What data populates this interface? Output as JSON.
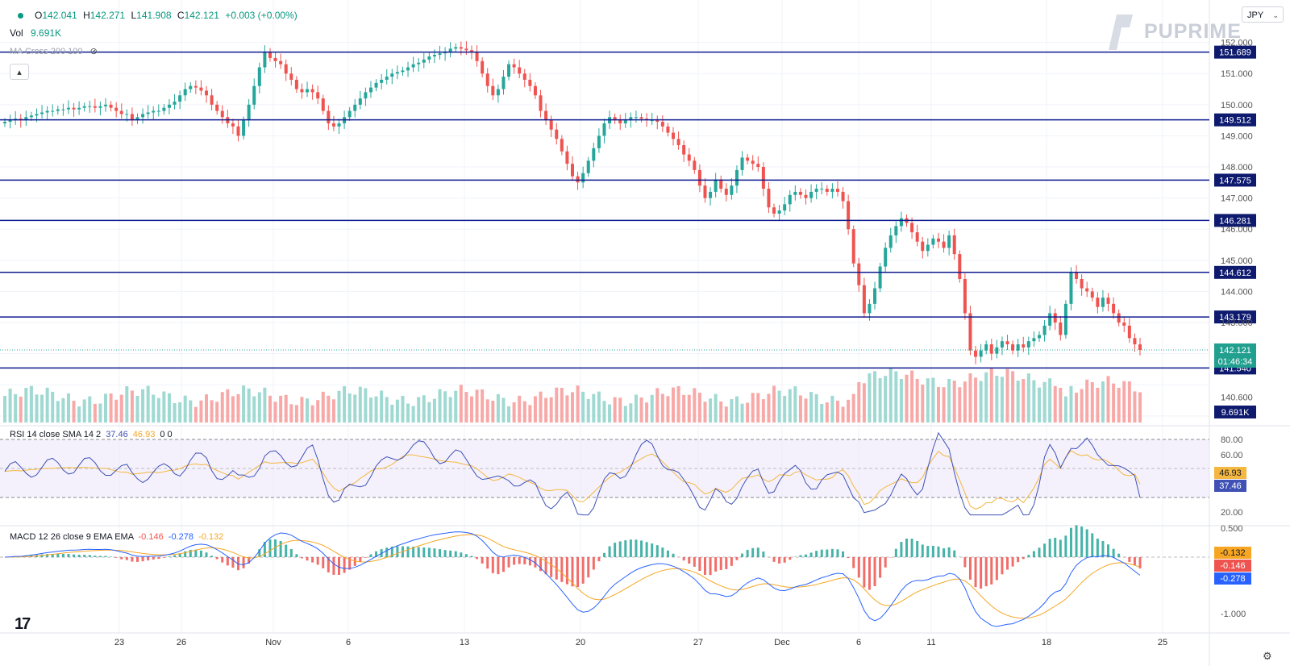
{
  "currency_selector": {
    "label": "JPY"
  },
  "brand": {
    "name": "PUPRIME"
  },
  "legend": {
    "open_label": "O",
    "open": "142.041",
    "high_label": "H",
    "high": "142.271",
    "low_label": "L",
    "low": "141.908",
    "close_label": "C",
    "close": "142.121",
    "change": "+0.003 (+0.00%)",
    "vol_label": "Vol",
    "vol_value": "9.691K",
    "ma_label": "MA Cross 200 100"
  },
  "rsi_legend": {
    "label": "RSI 14 close SMA 14 2",
    "rsi": "37.46",
    "sma": "46.93",
    "extra": "0 0"
  },
  "macd_legend": {
    "label": "MACD 12 26 close 9 EMA EMA",
    "hist": "-0.146",
    "macd": "-0.278",
    "signal": "-0.132"
  },
  "colors": {
    "up": "#26a69a",
    "down": "#ef5350",
    "line": "#0d1a8e",
    "rsi": "#3f51b5",
    "sma": "#f4b73f",
    "macd": "#2962ff",
    "signal": "#f6a623"
  },
  "chart_data": {
    "type": "candlestick",
    "symbol_unit": "JPY",
    "price_axis": {
      "ticks": [
        "152.000",
        "151.000",
        "150.000",
        "149.000",
        "148.000",
        "147.000",
        "146.000",
        "145.000",
        "144.000",
        "143.000",
        "140.600"
      ]
    },
    "time_axis": {
      "ticks": [
        "23",
        "26",
        "Nov",
        "6",
        "13",
        "20",
        "27",
        "Dec",
        "6",
        "11",
        "18",
        "25"
      ]
    },
    "horizontal_levels": [
      "151.689",
      "149.512",
      "147.575",
      "146.281",
      "144.612",
      "143.179",
      "141.540"
    ],
    "last_price": {
      "value": "142.121",
      "countdown": "01:46:34"
    },
    "volume_last": "9.691K",
    "closes": [
      149.45,
      149.5,
      149.55,
      149.5,
      149.6,
      149.65,
      149.7,
      149.75,
      149.8,
      149.8,
      149.85,
      149.85,
      149.9,
      149.85,
      149.9,
      149.95,
      149.95,
      149.9,
      149.95,
      150.0,
      149.9,
      149.8,
      149.7,
      149.7,
      149.5,
      149.6,
      149.7,
      149.75,
      149.8,
      149.8,
      149.9,
      150.0,
      150.1,
      150.3,
      150.5,
      150.6,
      150.55,
      150.45,
      150.3,
      150.0,
      149.8,
      149.6,
      149.4,
      149.3,
      149.0,
      149.5,
      150.0,
      150.6,
      151.2,
      151.7,
      151.5,
      151.4,
      151.3,
      151.0,
      150.8,
      150.5,
      150.4,
      150.5,
      150.4,
      150.2,
      149.8,
      149.4,
      149.3,
      149.4,
      149.6,
      149.8,
      150.0,
      150.2,
      150.4,
      150.55,
      150.7,
      150.8,
      150.9,
      151.0,
      151.05,
      151.1,
      151.2,
      151.3,
      151.35,
      151.45,
      151.55,
      151.6,
      151.65,
      151.7,
      151.8,
      151.85,
      151.8,
      151.75,
      151.7,
      151.4,
      151.0,
      150.6,
      150.3,
      150.5,
      150.9,
      151.3,
      151.2,
      151.0,
      150.8,
      150.6,
      150.3,
      149.8,
      149.5,
      149.2,
      148.9,
      148.5,
      148.1,
      147.7,
      147.5,
      147.8,
      148.2,
      148.6,
      149.0,
      149.4,
      149.6,
      149.5,
      149.4,
      149.5,
      149.6,
      149.6,
      149.55,
      149.5,
      149.5,
      149.45,
      149.3,
      149.1,
      148.9,
      148.7,
      148.4,
      148.2,
      147.9,
      147.4,
      147.0,
      147.2,
      147.6,
      147.3,
      147.1,
      147.4,
      147.9,
      148.3,
      148.2,
      148.1,
      148.0,
      147.3,
      146.7,
      146.5,
      146.6,
      146.8,
      147.1,
      147.2,
      147.1,
      147.0,
      147.2,
      147.3,
      147.3,
      147.2,
      147.3,
      147.2,
      146.9,
      146.0,
      144.9,
      144.2,
      143.3,
      143.6,
      144.1,
      144.8,
      145.4,
      145.8,
      146.1,
      146.35,
      146.2,
      145.9,
      145.6,
      145.3,
      145.5,
      145.7,
      145.6,
      145.4,
      145.8,
      145.2,
      144.4,
      143.3,
      142.1,
      141.9,
      142.1,
      142.3,
      142.0,
      142.2,
      142.4,
      142.3,
      142.1,
      142.3,
      142.2,
      142.4,
      142.5,
      142.6,
      142.9,
      143.3,
      143.0,
      142.6,
      143.6,
      144.6,
      144.4,
      144.1,
      144.0,
      143.8,
      143.5,
      143.8,
      143.6,
      143.3,
      143.0,
      142.9,
      142.5,
      142.3,
      142.121
    ]
  }
}
